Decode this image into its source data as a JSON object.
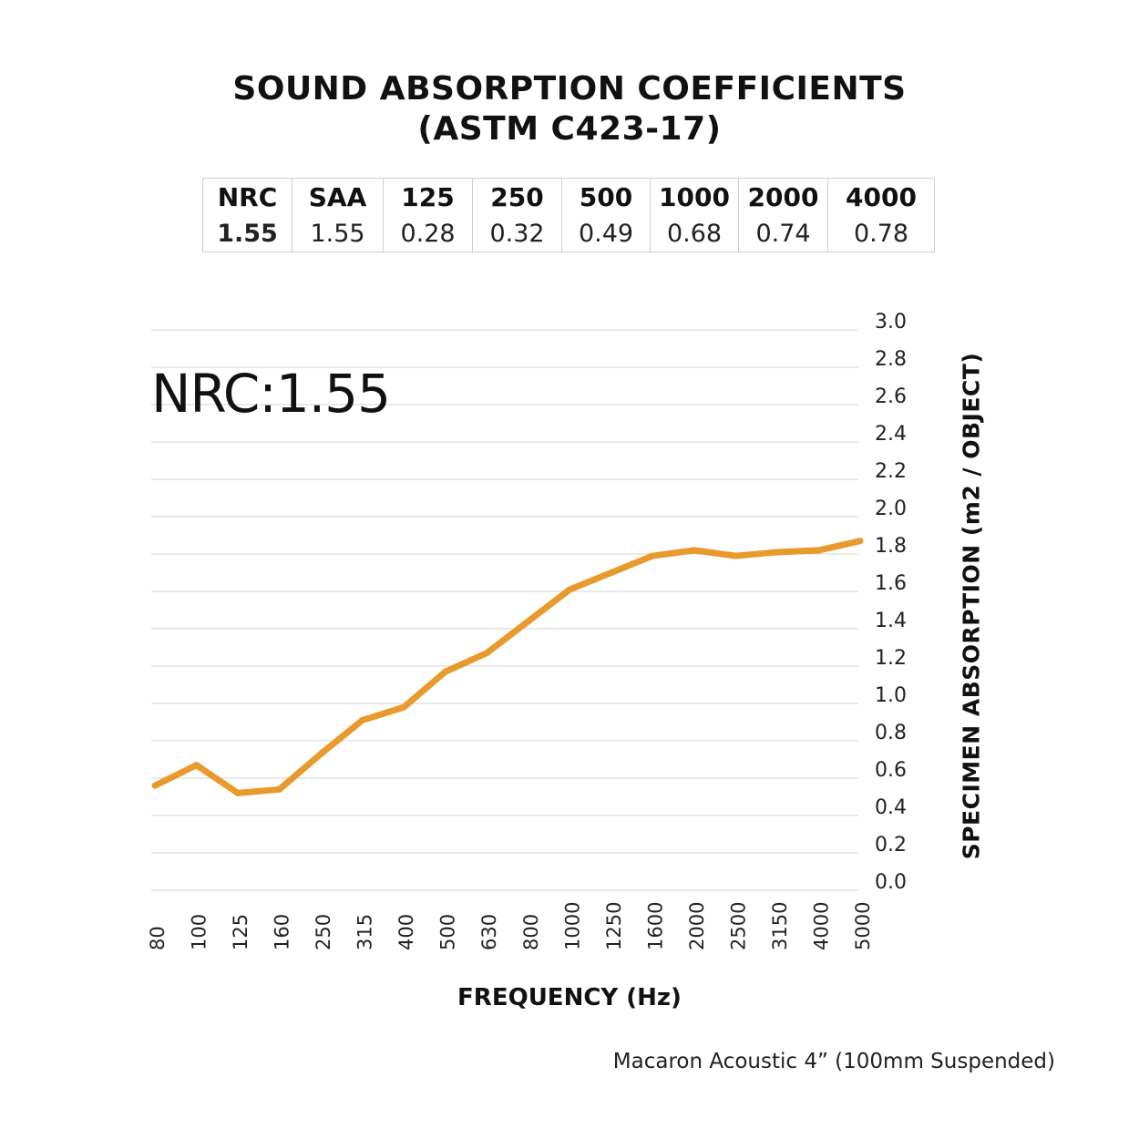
{
  "title_line1": "SOUND ABSORPTION COEFFICIENTS",
  "title_line2": "(ASTM C423-17)",
  "table": {
    "headers": [
      "NRC",
      "SAA",
      "125",
      "250",
      "500",
      "1000",
      "2000",
      "4000"
    ],
    "values": [
      "1.55",
      "1.55",
      "0.28",
      "0.32",
      "0.49",
      "0.68",
      "0.74",
      "0.78"
    ]
  },
  "nrc_label": "NRC:1.55",
  "caption": "Macaron Acoustic 4” (100mm Suspended)",
  "colors": {
    "line": "#E89A2C",
    "grid": "#d4d4d4"
  },
  "chart_data": {
    "type": "line",
    "xlabel": "FREQUENCY (Hz)",
    "ylabel": "SPECIMEN ABSORPTION (m2 / OBJECT)",
    "categories": [
      "80",
      "100",
      "125",
      "160",
      "250",
      "315",
      "400",
      "500",
      "630",
      "800",
      "1000",
      "1250",
      "1600",
      "2000",
      "2500",
      "3150",
      "4000",
      "5000"
    ],
    "y_ticks": [
      "3.0",
      "2.8",
      "2.6",
      "2.4",
      "2.2",
      "2.0",
      "1.8",
      "1.6",
      "1.4",
      "1.2",
      "1.0",
      "0.8",
      "0.6",
      "0.4",
      "0.2",
      "0.0"
    ],
    "ylim": [
      0,
      3.0
    ],
    "grid": true,
    "series": [
      {
        "points": [
          {
            "x": "80",
            "y": 0.56
          },
          {
            "x": "100",
            "y": 0.67
          },
          {
            "x": "125",
            "y": 0.52
          },
          {
            "x": "160",
            "y": 0.54
          },
          {
            "x": "250",
            "y": 0.73
          },
          {
            "x": "315",
            "y": 0.91
          },
          {
            "x": "400",
            "y": 0.98
          },
          {
            "x": "500",
            "y": 1.17
          },
          {
            "x": "630",
            "y": 1.27
          },
          {
            "x": "800",
            "y": 1.44
          },
          {
            "x": "1000",
            "y": 1.61
          },
          {
            "x": "1250",
            "y": 1.7
          },
          {
            "x": "1600",
            "y": 1.79
          },
          {
            "x": "2000",
            "y": 1.82
          },
          {
            "x": "2500",
            "y": 1.79
          },
          {
            "x": "3150",
            "y": 1.81
          },
          {
            "x": "4000",
            "y": 1.82
          },
          {
            "x": "5000",
            "y": 1.87
          }
        ]
      }
    ]
  }
}
